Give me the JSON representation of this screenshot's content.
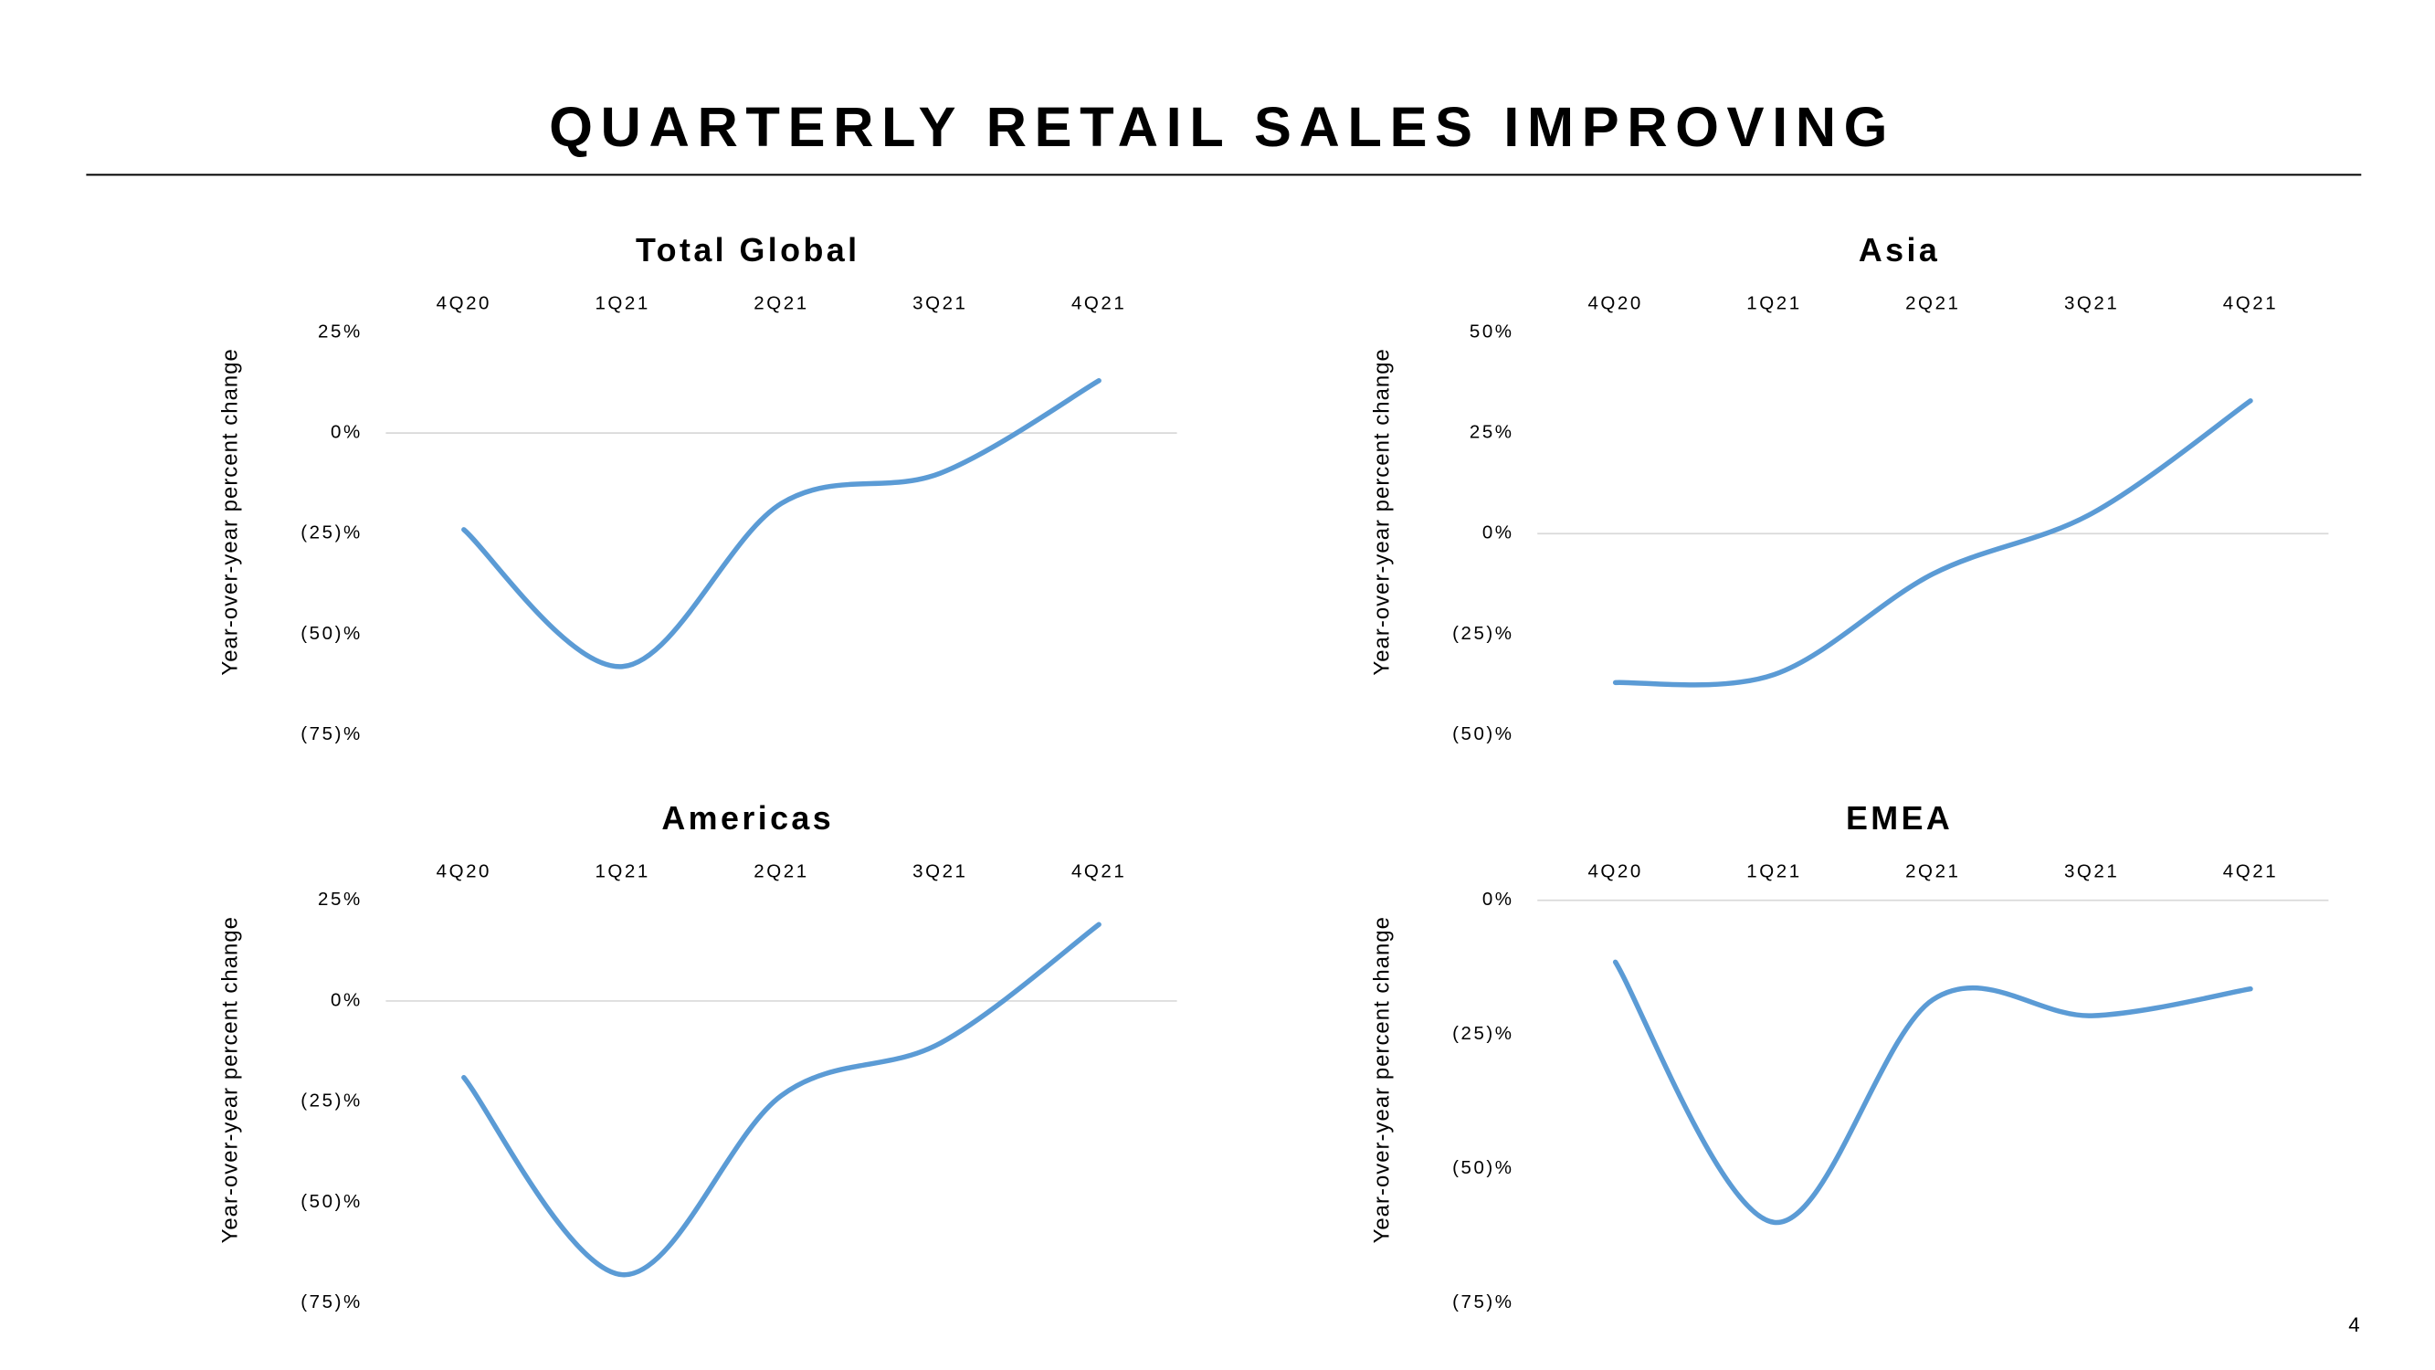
{
  "title": "QUARTERLY RETAIL SALES IMPROVING",
  "page_number": "4",
  "chart_data": [
    {
      "type": "line",
      "title": "Total Global",
      "y_label": "Year-over-year percent change",
      "categories": [
        "4Q20",
        "1Q21",
        "2Q21",
        "3Q21",
        "4Q21"
      ],
      "values": [
        -24,
        -58,
        -17.5,
        -10,
        13
      ],
      "color": "#5b9bd5",
      "ylim": [
        -75,
        25
      ],
      "yticks": [
        {
          "value": 25,
          "label": "25%"
        },
        {
          "value": 0,
          "label": "0%"
        },
        {
          "value": -25,
          "label": "(25)%"
        },
        {
          "value": -50,
          "label": "(50)%"
        },
        {
          "value": -75,
          "label": "(75)%"
        }
      ]
    },
    {
      "type": "line",
      "title": "Asia",
      "y_label": "Year-over-year percent change",
      "categories": [
        "4Q20",
        "1Q21",
        "2Q21",
        "3Q21",
        "4Q21"
      ],
      "values": [
        -37,
        -35,
        -10,
        5,
        33
      ],
      "color": "#5b9bd5",
      "ylim": [
        -50,
        50
      ],
      "yticks": [
        {
          "value": 50,
          "label": "50%"
        },
        {
          "value": 25,
          "label": "25%"
        },
        {
          "value": 0,
          "label": "0%"
        },
        {
          "value": -25,
          "label": "(25)%"
        },
        {
          "value": -50,
          "label": "(50)%"
        }
      ]
    },
    {
      "type": "line",
      "title": "Americas",
      "y_label": "Year-over-year percent change",
      "categories": [
        "4Q20",
        "1Q21",
        "2Q21",
        "3Q21",
        "4Q21"
      ],
      "values": [
        -19,
        -68,
        -23.5,
        -10.5,
        19
      ],
      "color": "#5b9bd5",
      "ylim": [
        -75,
        25
      ],
      "yticks": [
        {
          "value": 25,
          "label": "25%"
        },
        {
          "value": 0,
          "label": "0%"
        },
        {
          "value": -25,
          "label": "(25)%"
        },
        {
          "value": -50,
          "label": "(50)%"
        },
        {
          "value": -75,
          "label": "(75)%"
        }
      ]
    },
    {
      "type": "line",
      "title": "EMEA",
      "y_label": "Year-over-year percent change",
      "categories": [
        "4Q20",
        "1Q21",
        "2Q21",
        "3Q21",
        "4Q21"
      ],
      "values": [
        -11.5,
        -60,
        -18.5,
        -21.5,
        -16.5
      ],
      "color": "#5b9bd5",
      "ylim": [
        -75,
        0
      ],
      "yticks": [
        {
          "value": 0,
          "label": "0%"
        },
        {
          "value": -25,
          "label": "(25)%"
        },
        {
          "value": -50,
          "label": "(50)%"
        },
        {
          "value": -75,
          "label": "(75)%"
        }
      ]
    }
  ]
}
